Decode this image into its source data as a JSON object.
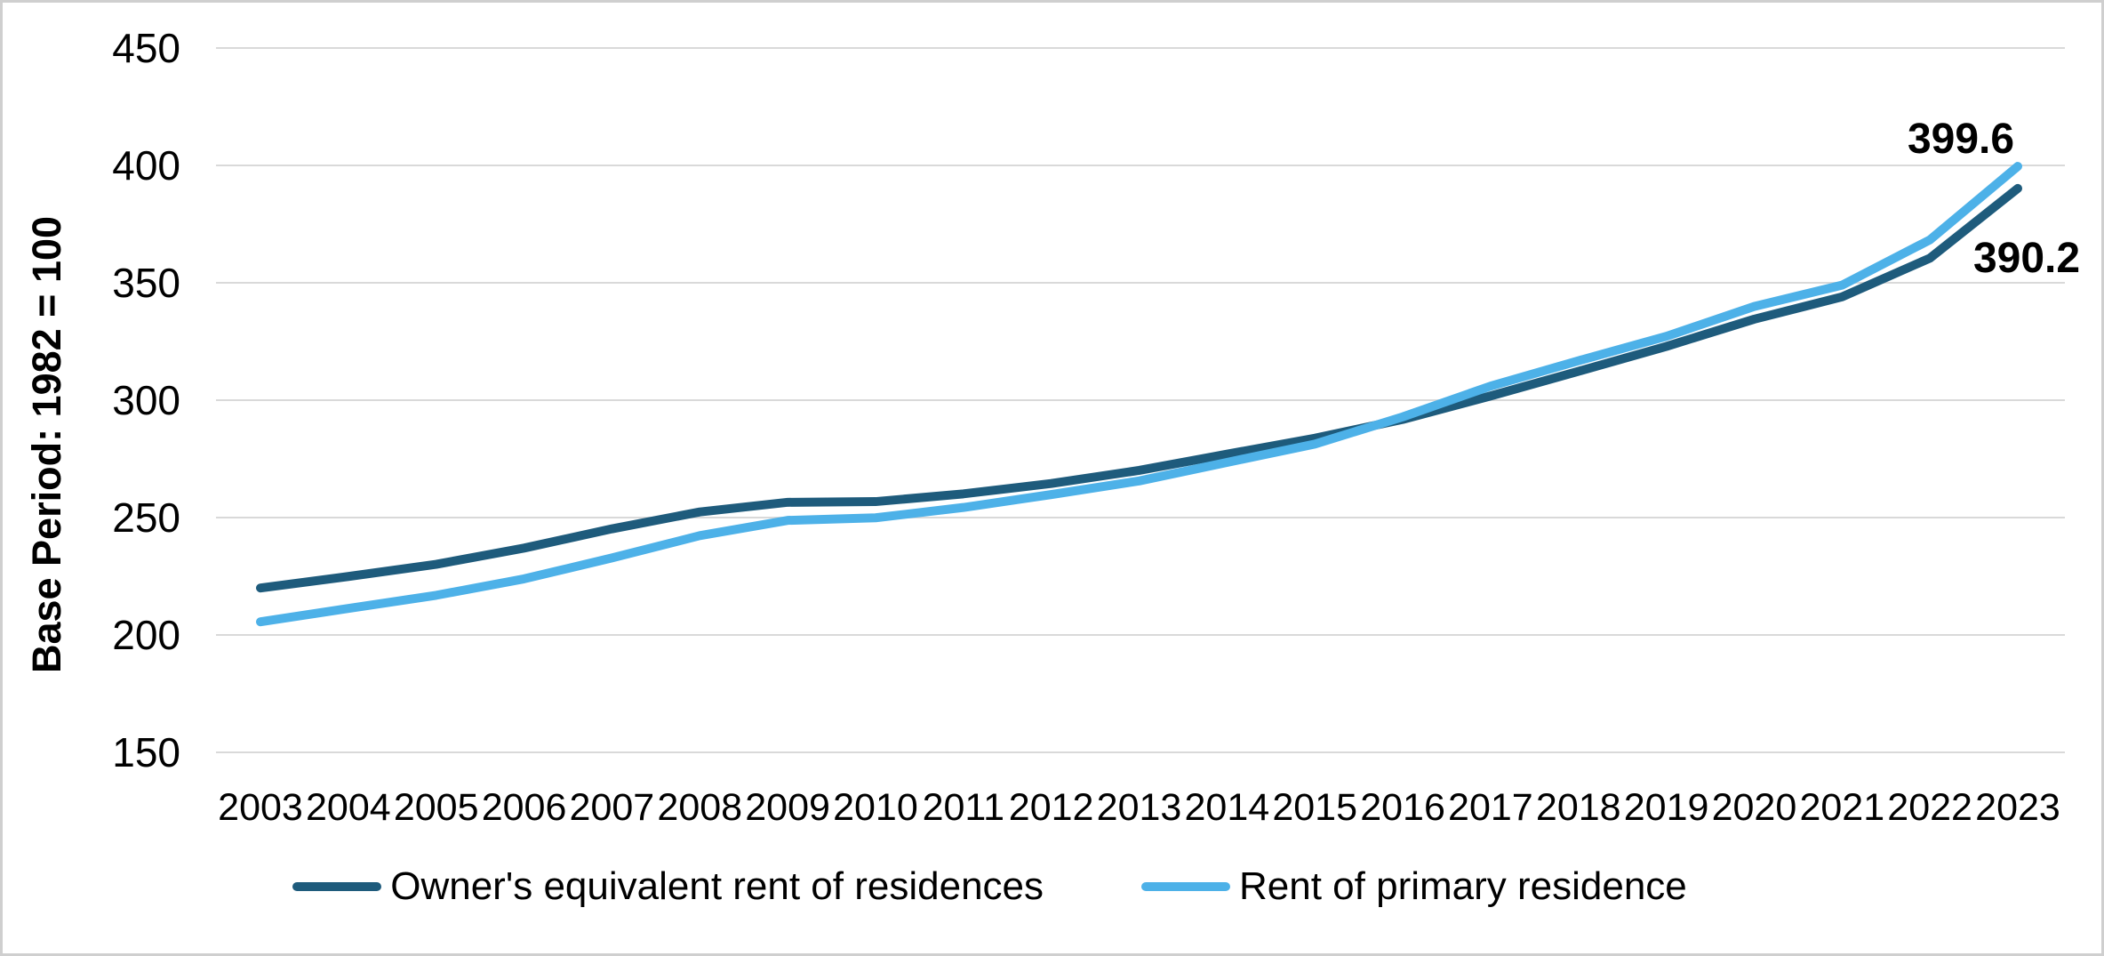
{
  "chart_data": {
    "type": "line",
    "title": "",
    "ylabel": "Base Period: 1982 = 100",
    "xlabel": "",
    "ylim": [
      150,
      450
    ],
    "y_ticks": [
      150,
      200,
      250,
      300,
      350,
      400,
      450
    ],
    "grid": "horizontal",
    "legend_position": "bottom",
    "x": [
      2003,
      2004,
      2005,
      2006,
      2007,
      2008,
      2009,
      2010,
      2011,
      2012,
      2013,
      2014,
      2015,
      2016,
      2017,
      2018,
      2019,
      2020,
      2021,
      2022,
      2023
    ],
    "series": [
      {
        "name": "Owner's equivalent rent of residences",
        "color": "#1e5b7c",
        "end_label": "390.2",
        "values": [
          220.0,
          224.9,
          230.1,
          237.0,
          245.2,
          252.4,
          256.5,
          256.8,
          260.1,
          264.5,
          270.1,
          277.0,
          283.8,
          291.8,
          301.8,
          312.3,
          322.9,
          334.5,
          344.0,
          360.5,
          390.2
        ]
      },
      {
        "name": "Rent of primary residence",
        "color": "#4db1e8",
        "end_label": "399.6",
        "values": [
          205.6,
          211.3,
          216.9,
          223.9,
          232.8,
          242.3,
          248.8,
          249.9,
          254.3,
          259.8,
          265.6,
          273.5,
          281.3,
          292.9,
          306.0,
          316.8,
          327.2,
          339.9,
          349.0,
          368.3,
          399.6
        ]
      }
    ],
    "colors": {
      "gridline": "#d9d9d9",
      "background": "#ffffff",
      "frame_border": "#cfcfcf",
      "text": "#000000"
    }
  }
}
